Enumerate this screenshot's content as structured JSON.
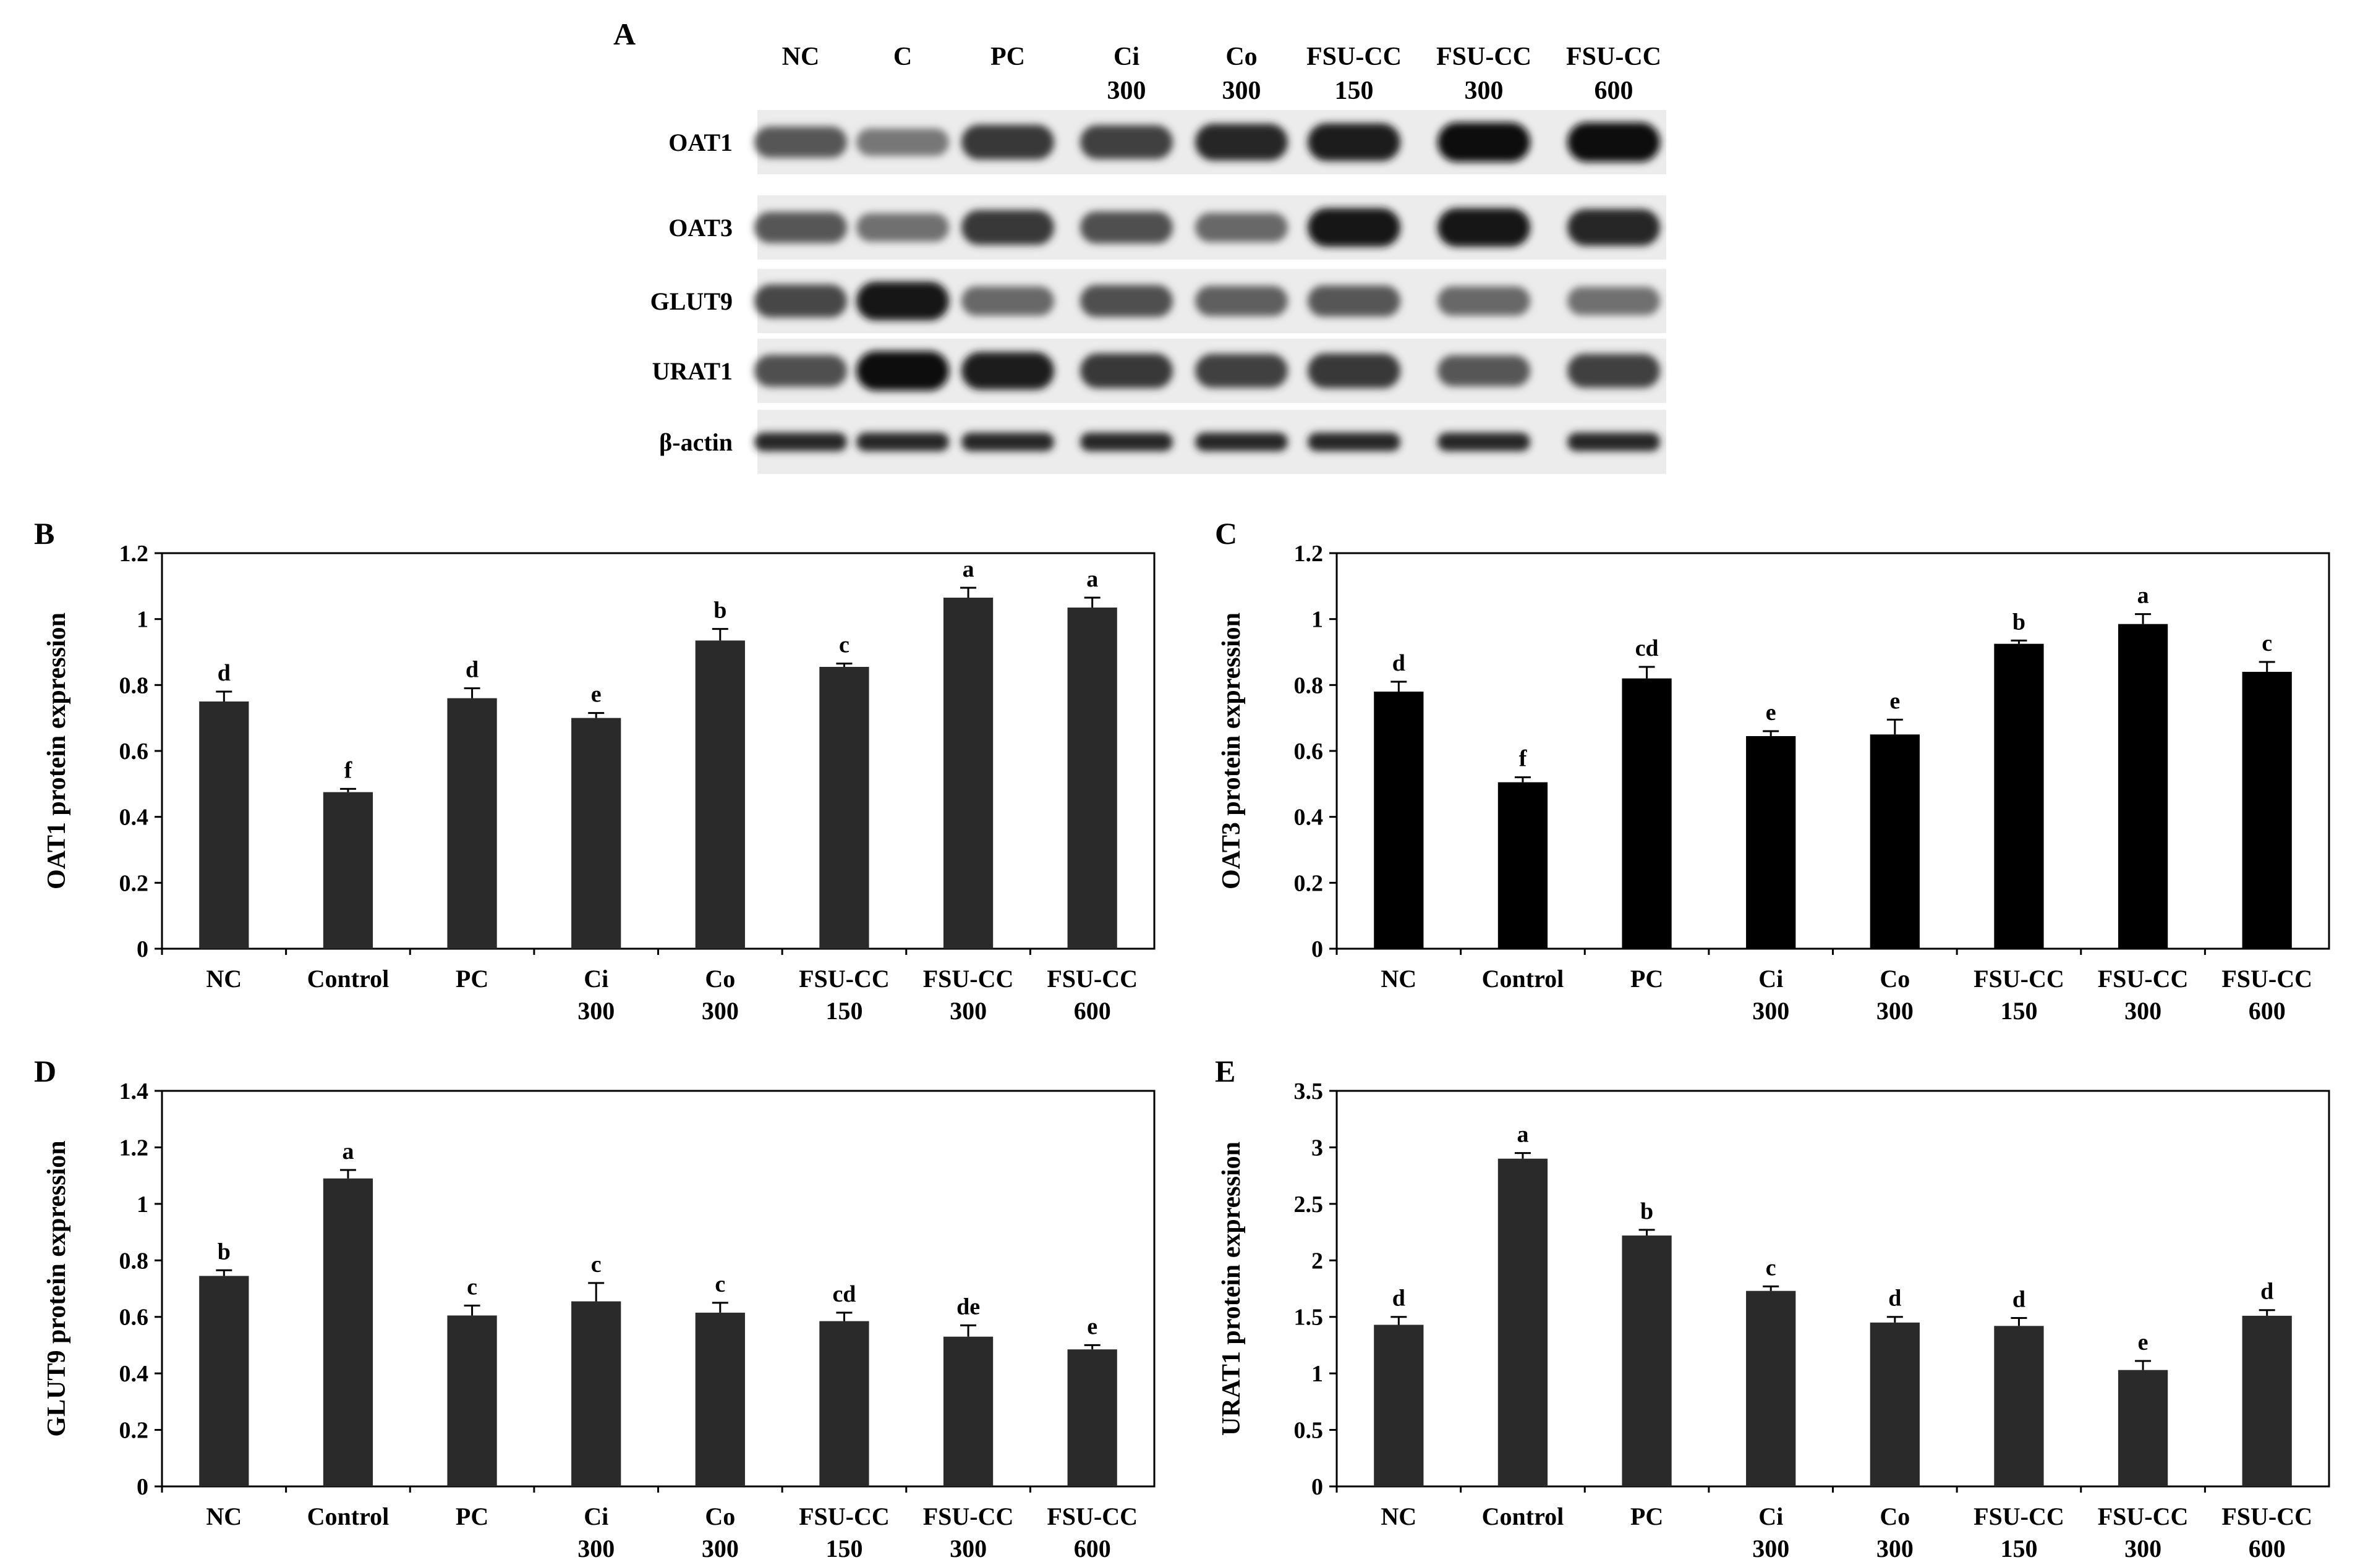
{
  "blot": {
    "panel_label": "A",
    "lanes": [
      [
        "NC"
      ],
      [
        "C"
      ],
      [
        "PC"
      ],
      [
        "Ci",
        "300"
      ],
      [
        "Co",
        "300"
      ],
      [
        "FSU-CC",
        "150"
      ],
      [
        "FSU-CC",
        "300"
      ],
      [
        "FSU-CC",
        "600"
      ]
    ],
    "proteins": [
      {
        "name": "OAT1",
        "intensity": [
          0.55,
          0.35,
          0.75,
          0.7,
          0.85,
          0.9,
          1.0,
          1.0
        ]
      },
      {
        "name": "OAT3",
        "intensity": [
          0.55,
          0.4,
          0.75,
          0.6,
          0.45,
          0.95,
          0.95,
          0.85
        ]
      },
      {
        "name": "GLUT9",
        "intensity": [
          0.65,
          0.95,
          0.45,
          0.6,
          0.5,
          0.55,
          0.45,
          0.4
        ]
      },
      {
        "name": "URAT1",
        "intensity": [
          0.6,
          1.0,
          0.9,
          0.75,
          0.7,
          0.75,
          0.55,
          0.7
        ]
      },
      {
        "name": "β-actin",
        "intensity": [
          0.85,
          0.85,
          0.85,
          0.85,
          0.85,
          0.85,
          0.85,
          0.85
        ]
      }
    ]
  },
  "chart_data": [
    {
      "panel_label": "B",
      "type": "bar",
      "ylabel": "OAT1 protein expression",
      "ylim": [
        0,
        1.2
      ],
      "yticks": [
        "0",
        "0.2",
        "0.4",
        "0.6",
        "0.8",
        "1",
        "1.2"
      ],
      "categories": [
        [
          "NC"
        ],
        [
          "Control"
        ],
        [
          "PC"
        ],
        [
          "Ci",
          "300"
        ],
        [
          "Co",
          "300"
        ],
        [
          "FSU-CC",
          "150"
        ],
        [
          "FSU-CC",
          "300"
        ],
        [
          "FSU-CC",
          "600"
        ]
      ],
      "values": [
        0.75,
        0.475,
        0.76,
        0.7,
        0.935,
        0.855,
        1.065,
        1.035
      ],
      "errors": [
        0.03,
        0.01,
        0.03,
        0.015,
        0.035,
        0.01,
        0.03,
        0.03
      ],
      "letters": [
        "d",
        "f",
        "d",
        "e",
        "b",
        "c",
        "a",
        "a"
      ],
      "bar_color": "#2a2a2a"
    },
    {
      "panel_label": "C",
      "type": "bar",
      "ylabel": "OAT3 protein expression",
      "ylim": [
        0,
        1.2
      ],
      "yticks": [
        "0",
        "0.2",
        "0.4",
        "0.6",
        "0.8",
        "1",
        "1.2"
      ],
      "categories": [
        [
          "NC"
        ],
        [
          "Control"
        ],
        [
          "PC"
        ],
        [
          "Ci",
          "300"
        ],
        [
          "Co",
          "300"
        ],
        [
          "FSU-CC",
          "150"
        ],
        [
          "FSU-CC",
          "300"
        ],
        [
          "FSU-CC",
          "600"
        ]
      ],
      "values": [
        0.78,
        0.505,
        0.82,
        0.645,
        0.65,
        0.925,
        0.985,
        0.84
      ],
      "errors": [
        0.03,
        0.015,
        0.035,
        0.015,
        0.045,
        0.01,
        0.03,
        0.03
      ],
      "letters": [
        "d",
        "f",
        "cd",
        "e",
        "e",
        "b",
        "a",
        "c"
      ],
      "bar_color": "#000000"
    },
    {
      "panel_label": "D",
      "type": "bar",
      "ylabel": "GLUT9 protein expression",
      "ylim": [
        0,
        1.4
      ],
      "yticks": [
        "0",
        "0.2",
        "0.4",
        "0.6",
        "0.8",
        "1",
        "1.2",
        "1.4"
      ],
      "categories": [
        [
          "NC"
        ],
        [
          "Control"
        ],
        [
          "PC"
        ],
        [
          "Ci",
          "300"
        ],
        [
          "Co",
          "300"
        ],
        [
          "FSU-CC",
          "150"
        ],
        [
          "FSU-CC",
          "300"
        ],
        [
          "FSU-CC",
          "600"
        ]
      ],
      "values": [
        0.745,
        1.09,
        0.605,
        0.655,
        0.615,
        0.585,
        0.53,
        0.485
      ],
      "errors": [
        0.02,
        0.03,
        0.035,
        0.065,
        0.035,
        0.03,
        0.04,
        0.015
      ],
      "letters": [
        "b",
        "a",
        "c",
        "c",
        "c",
        "cd",
        "de",
        "e"
      ],
      "bar_color": "#2a2a2a"
    },
    {
      "panel_label": "E",
      "type": "bar",
      "ylabel": "URAT1 protein expression",
      "ylim": [
        0,
        3.5
      ],
      "yticks": [
        "0",
        "0.5",
        "1",
        "1.5",
        "2",
        "2.5",
        "3",
        "3.5"
      ],
      "categories": [
        [
          "NC"
        ],
        [
          "Control"
        ],
        [
          "PC"
        ],
        [
          "Ci",
          "300"
        ],
        [
          "Co",
          "300"
        ],
        [
          "FSU-CC",
          "150"
        ],
        [
          "FSU-CC",
          "300"
        ],
        [
          "FSU-CC",
          "600"
        ]
      ],
      "values": [
        1.43,
        2.9,
        2.22,
        1.73,
        1.45,
        1.42,
        1.03,
        1.51
      ],
      "errors": [
        0.07,
        0.05,
        0.05,
        0.04,
        0.05,
        0.07,
        0.08,
        0.05
      ],
      "letters": [
        "d",
        "a",
        "b",
        "c",
        "d",
        "d",
        "e",
        "d"
      ],
      "bar_color": "#2a2a2a"
    }
  ]
}
